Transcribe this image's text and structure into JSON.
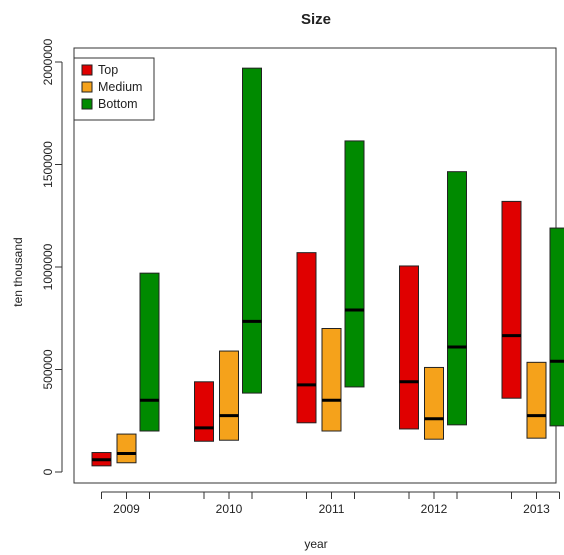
{
  "chart_data": {
    "type": "box",
    "title": "Size",
    "xlabel": "year",
    "ylabel": "ten thousand",
    "categories": [
      "2009",
      "2010",
      "2011",
      "2012",
      "2013"
    ],
    "ylim": [
      -40000,
      2100000
    ],
    "yticks": [
      0,
      500000,
      1000000,
      1500000,
      2000000
    ],
    "yticklabels": [
      "0",
      "500000",
      "1000000",
      "1500000",
      "2000000"
    ],
    "grid": false,
    "legend_position": "top-left",
    "series": [
      {
        "name": "Top",
        "color": "#e00000",
        "low": [
          30000,
          150000,
          240000,
          210000,
          360000
        ],
        "median": [
          60000,
          215000,
          425000,
          440000,
          665000
        ],
        "high": [
          95000,
          440000,
          1070000,
          1005000,
          1320000
        ]
      },
      {
        "name": "Medium",
        "color": "#f5a21b",
        "low": [
          45000,
          155000,
          200000,
          160000,
          165000
        ],
        "median": [
          90000,
          275000,
          350000,
          260000,
          275000
        ],
        "high": [
          185000,
          590000,
          700000,
          510000,
          535000
        ]
      },
      {
        "name": "Bottom",
        "color": "#008a00",
        "low": [
          200000,
          385000,
          415000,
          230000,
          225000
        ],
        "median": [
          350000,
          735000,
          790000,
          610000,
          540000
        ],
        "high": [
          970000,
          1970000,
          1615000,
          1465000,
          1190000
        ]
      }
    ]
  }
}
